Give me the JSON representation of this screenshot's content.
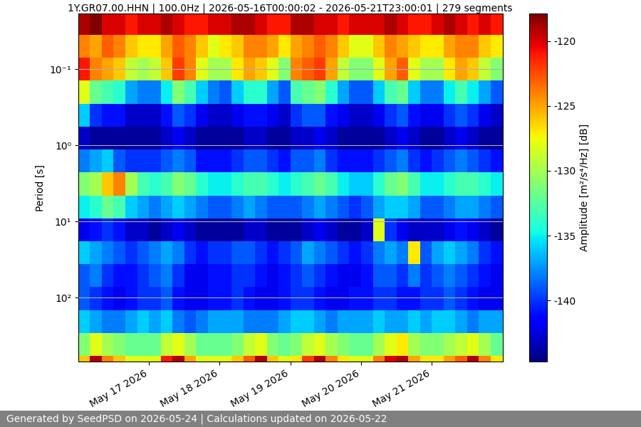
{
  "chart_data": {
    "type": "heatmap",
    "title": "1Y.GR07.00.HHN | 100.0Hz | 2026-05-16T00:00:02 - 2026-05-21T23:00:01 | 279 segments",
    "y_label": "Period [s]",
    "footer": "Generated by SeedPSD on 2026-05-24 | Calculations updated on 2026-05-22",
    "log": "y",
    "grid": true,
    "xlim": [
      "2026-05-16T00:00",
      "2026-05-22T00:00"
    ],
    "xticks": [
      {
        "value": "2026-05-17T00:00",
        "label": "May 17 2026"
      },
      {
        "value": "2026-05-18T00:00",
        "label": "May 18 2026"
      },
      {
        "value": "2026-05-19T00:00",
        "label": "May 19 2026"
      },
      {
        "value": "2026-05-20T00:00",
        "label": "May 20 2026"
      },
      {
        "value": "2026-05-21T00:00",
        "label": "May 21 2026"
      }
    ],
    "ylim": [
      690,
      0.0186
    ],
    "yticks": [
      {
        "value": 0.1,
        "label": "10⁻¹"
      },
      {
        "value": 1,
        "label": "10⁰"
      },
      {
        "value": 10,
        "label": "10¹"
      },
      {
        "value": 100,
        "label": "10²"
      }
    ],
    "colorbar_label": "Amplitude [m²/s⁴/Hz] [dB]",
    "colorbar_range": [
      -144.7,
      -117.9
    ],
    "colorbar_ticks": [
      -140,
      -135,
      -130,
      -125,
      -120
    ],
    "x": [
      "2026-05-16T02:00",
      "2026-05-16T06:00",
      "2026-05-16T10:00",
      "2026-05-16T14:00",
      "2026-05-16T18:00",
      "2026-05-16T22:00",
      "2026-05-17T02:00",
      "2026-05-17T06:00",
      "2026-05-17T10:00",
      "2026-05-17T14:00",
      "2026-05-17T18:00",
      "2026-05-17T22:00",
      "2026-05-18T02:00",
      "2026-05-18T06:00",
      "2026-05-18T10:00",
      "2026-05-18T14:00",
      "2026-05-18T18:00",
      "2026-05-18T22:00",
      "2026-05-19T02:00",
      "2026-05-19T06:00",
      "2026-05-19T10:00",
      "2026-05-19T14:00",
      "2026-05-19T18:00",
      "2026-05-19T22:00",
      "2026-05-20T02:00",
      "2026-05-20T06:00",
      "2026-05-20T10:00",
      "2026-05-20T14:00",
      "2026-05-20T18:00",
      "2026-05-20T22:00",
      "2026-05-21T02:00",
      "2026-05-21T06:00",
      "2026-05-21T10:00",
      "2026-05-21T14:00",
      "2026-05-21T18:00",
      "2026-05-21T22:00"
    ],
    "y": [
      0.025,
      0.05,
      0.1,
      0.2,
      0.4,
      0.8,
      1.6,
      3.2,
      6.4,
      12.8,
      25.6,
      51.2,
      102.4,
      204.8,
      409.6,
      819.2
    ],
    "cells": [
      [
        -119,
        -118,
        -120,
        -120,
        -121,
        -120,
        -120,
        -119,
        -120,
        -121,
        -121,
        -120,
        -120,
        -119,
        -119,
        -120,
        -121,
        -121,
        -119,
        -119,
        -120,
        -120,
        -121,
        -120,
        -120,
        -120,
        -119,
        -120,
        -121,
        -121,
        -120,
        -119,
        -120,
        -121,
        -120,
        -121
      ],
      [
        -124,
        -125,
        -123,
        -124,
        -126,
        -127,
        -127,
        -125,
        -123,
        -124,
        -126,
        -128,
        -127,
        -126,
        -124,
        -124,
        -125,
        -127,
        -125,
        -124,
        -123,
        -124,
        -126,
        -128,
        -128,
        -126,
        -124,
        -125,
        -126,
        -127,
        -127,
        -125,
        -124,
        -124,
        -126,
        -127
      ],
      [
        -121,
        -124,
        -125,
        -126,
        -129,
        -130,
        -129,
        -126,
        -122,
        -124,
        -128,
        -130,
        -130,
        -127,
        -125,
        -126,
        -128,
        -131,
        -124,
        -123,
        -122,
        -125,
        -129,
        -131,
        -131,
        -128,
        -125,
        -123,
        -128,
        -130,
        -130,
        -127,
        -125,
        -126,
        -129,
        -131
      ],
      [
        -128,
        -132,
        -133,
        -134,
        -137,
        -138,
        -138,
        -135,
        -131,
        -133,
        -136,
        -138,
        -139,
        -136,
        -134,
        -134,
        -137,
        -139,
        -133,
        -132,
        -131,
        -134,
        -137,
        -139,
        -139,
        -136,
        -133,
        -132,
        -136,
        -138,
        -138,
        -135,
        -133,
        -135,
        -137,
        -139
      ],
      [
        -136,
        -140,
        -141,
        -141,
        -143,
        -143,
        -143,
        -141,
        -139,
        -140,
        -142,
        -143,
        -143,
        -142,
        -141,
        -141,
        -142,
        -143,
        -140,
        -139,
        -139,
        -141,
        -142,
        -143,
        -143,
        -142,
        -140,
        -139,
        -141,
        -142,
        -142,
        -140,
        -139,
        -140,
        -142,
        -143
      ],
      [
        -143,
        -144,
        -144,
        -144,
        -144,
        -144,
        -144,
        -143,
        -142,
        -143,
        -144,
        -144,
        -144,
        -144,
        -143,
        -143,
        -144,
        -144,
        -143,
        -143,
        -142,
        -143,
        -144,
        -144,
        -144,
        -144,
        -143,
        -142,
        -143,
        -144,
        -144,
        -143,
        -142,
        -143,
        -144,
        -144
      ],
      [
        -138,
        -137,
        -136,
        -139,
        -140,
        -140,
        -140,
        -139,
        -138,
        -139,
        -141,
        -141,
        -141,
        -140,
        -139,
        -139,
        -140,
        -141,
        -139,
        -139,
        -138,
        -140,
        -141,
        -141,
        -141,
        -140,
        -139,
        -138,
        -140,
        -141,
        -140,
        -139,
        -138,
        -139,
        -140,
        -141
      ],
      [
        -131,
        -130,
        -126,
        -124,
        -130,
        -133,
        -134,
        -133,
        -131,
        -132,
        -134,
        -135,
        -135,
        -134,
        -133,
        -133,
        -134,
        -135,
        -134,
        -133,
        -132,
        -133,
        -135,
        -136,
        -136,
        -134,
        -132,
        -131,
        -133,
        -135,
        -135,
        -134,
        -133,
        -133,
        -134,
        -135
      ],
      [
        -135,
        -134,
        -132,
        -133,
        -136,
        -137,
        -138,
        -137,
        -136,
        -137,
        -138,
        -139,
        -139,
        -138,
        -137,
        -138,
        -139,
        -139,
        -139,
        -138,
        -137,
        -138,
        -139,
        -140,
        -139,
        -137,
        -136,
        -136,
        -137,
        -139,
        -139,
        -138,
        -137,
        -137,
        -138,
        -139
      ],
      [
        -142,
        -141,
        -140,
        -141,
        -143,
        -143,
        -144,
        -143,
        -142,
        -143,
        -144,
        -144,
        -144,
        -144,
        -143,
        -143,
        -144,
        -144,
        -144,
        -143,
        -142,
        -143,
        -144,
        -144,
        -143,
        -128,
        -140,
        -142,
        -143,
        -143,
        -143,
        -142,
        -141,
        -142,
        -143,
        -144
      ],
      [
        -136,
        -137,
        -138,
        -139,
        -140,
        -139,
        -138,
        -137,
        -138,
        -140,
        -141,
        -140,
        -140,
        -139,
        -139,
        -140,
        -141,
        -140,
        -139,
        -137,
        -138,
        -139,
        -140,
        -141,
        -140,
        -138,
        -137,
        -138,
        -127,
        -139,
        -137,
        -136,
        -137,
        -138,
        -140,
        -141
      ],
      [
        -139,
        -138,
        -140,
        -141,
        -141,
        -140,
        -139,
        -138,
        -140,
        -142,
        -142,
        -141,
        -141,
        -140,
        -140,
        -141,
        -142,
        -141,
        -140,
        -139,
        -140,
        -141,
        -142,
        -142,
        -141,
        -139,
        -139,
        -140,
        -138,
        -140,
        -139,
        -138,
        -139,
        -140,
        -141,
        -142
      ],
      [
        -139,
        -140,
        -141,
        -142,
        -141,
        -140,
        -140,
        -139,
        -141,
        -142,
        -142,
        -141,
        -141,
        -140,
        -141,
        -142,
        -142,
        -141,
        -140,
        -140,
        -141,
        -142,
        -142,
        -141,
        -141,
        -140,
        -140,
        -141,
        -141,
        -140,
        -140,
        -139,
        -140,
        -141,
        -142,
        -142
      ],
      [
        -136,
        -137,
        -138,
        -138,
        -137,
        -136,
        -137,
        -136,
        -138,
        -139,
        -138,
        -137,
        -137,
        -137,
        -138,
        -138,
        -138,
        -137,
        -136,
        -136,
        -137,
        -138,
        -137,
        -137,
        -137,
        -136,
        -137,
        -137,
        -136,
        -137,
        -136,
        -136,
        -137,
        -138,
        -137,
        -137
      ],
      [
        -131,
        -128,
        -130,
        -131,
        -132,
        -132,
        -132,
        -129,
        -128,
        -130,
        -132,
        -132,
        -132,
        -131,
        -129,
        -128,
        -131,
        -132,
        -131,
        -129,
        -128,
        -130,
        -131,
        -132,
        -132,
        -130,
        -128,
        -127,
        -130,
        -131,
        -131,
        -130,
        -129,
        -128,
        -130,
        -132
      ],
      [
        -126,
        -119,
        -124,
        -126,
        -128,
        -128,
        -128,
        -121,
        -119,
        -125,
        -128,
        -128,
        -128,
        -126,
        -123,
        -119,
        -126,
        -128,
        -127,
        -122,
        -119,
        -124,
        -127,
        -128,
        -128,
        -124,
        -120,
        -119,
        -125,
        -127,
        -127,
        -125,
        -123,
        -119,
        -124,
        -127
      ]
    ]
  }
}
